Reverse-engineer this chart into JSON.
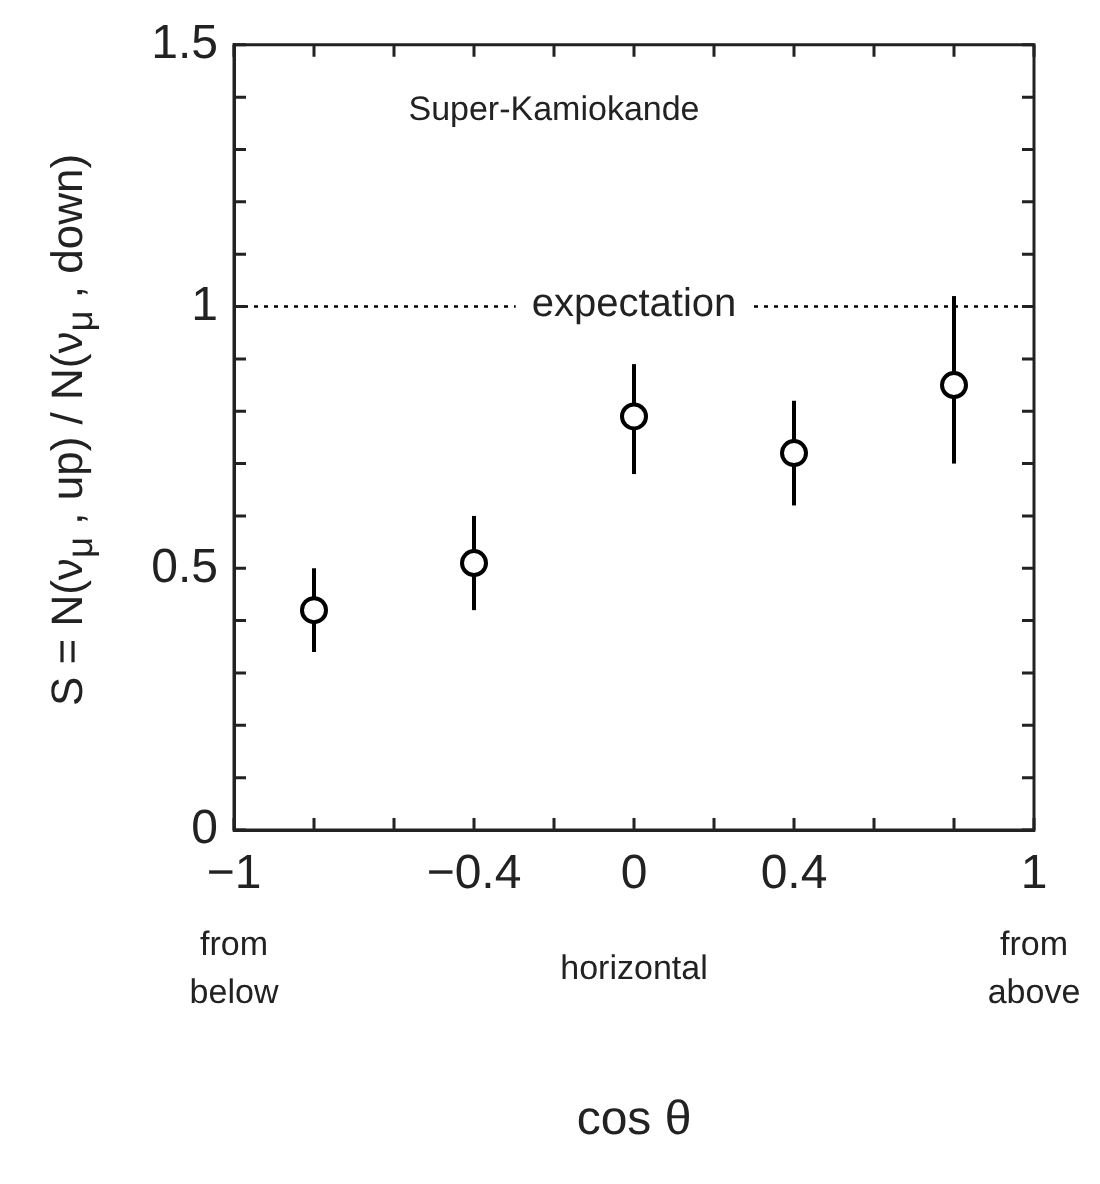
{
  "chart_data": {
    "type": "scatter",
    "xlabel": "cos θ",
    "ylabel": "S = N(ν$_{μ}$ , up) / N(ν$_{μ}$ , down)",
    "x": [
      -0.8,
      -0.4,
      0,
      0.4,
      0.8
    ],
    "series": [
      {
        "color": "#000000",
        "values": [
          0.42,
          0.51,
          0.79,
          0.72,
          0.85
        ],
        "errors": [
          [
            0.34,
            0.5
          ],
          [
            0.42,
            0.6
          ],
          [
            0.68,
            0.89
          ],
          [
            0.62,
            0.82
          ],
          [
            0.7,
            1.02
          ]
        ]
      }
    ],
    "marker": "circle",
    "xlim": [
      -1,
      1
    ],
    "xticks": [
      {
        "value": -1,
        "label": "−1"
      },
      {
        "value": -0.8,
        "label": null
      },
      {
        "value": -0.6,
        "label": null
      },
      {
        "value": -0.4,
        "label": "−0.4"
      },
      {
        "value": -0.2,
        "label": null
      },
      0,
      {
        "value": 0.2,
        "label": null
      },
      0.4,
      {
        "value": 0.6,
        "label": null
      },
      {
        "value": 0.8,
        "label": null
      },
      1
    ],
    "ylim": [
      0,
      1.5
    ],
    "yticks": [
      0,
      {
        "value": 0.1,
        "label": null
      },
      {
        "value": 0.2,
        "label": null
      },
      {
        "value": 0.3,
        "label": null
      },
      {
        "value": 0.4,
        "label": null
      },
      0.5,
      {
        "value": 0.6,
        "label": null
      },
      {
        "value": 0.7,
        "label": null
      },
      {
        "value": 0.8,
        "label": null
      },
      {
        "value": 0.9,
        "label": null
      },
      1,
      {
        "value": 1.1,
        "label": null
      },
      {
        "value": 1.2,
        "label": null
      },
      {
        "value": 1.3,
        "label": null
      },
      {
        "value": 1.4,
        "label": null
      },
      1.5
    ],
    "ref_lines": [
      {
        "axis": "y",
        "value": 1,
        "label": "expectation",
        "color": "#000000",
        "line_style": "dotted"
      }
    ],
    "annotations": [
      "Super-Kamiokande",
      "from below",
      "horizontal",
      "from above"
    ]
  }
}
